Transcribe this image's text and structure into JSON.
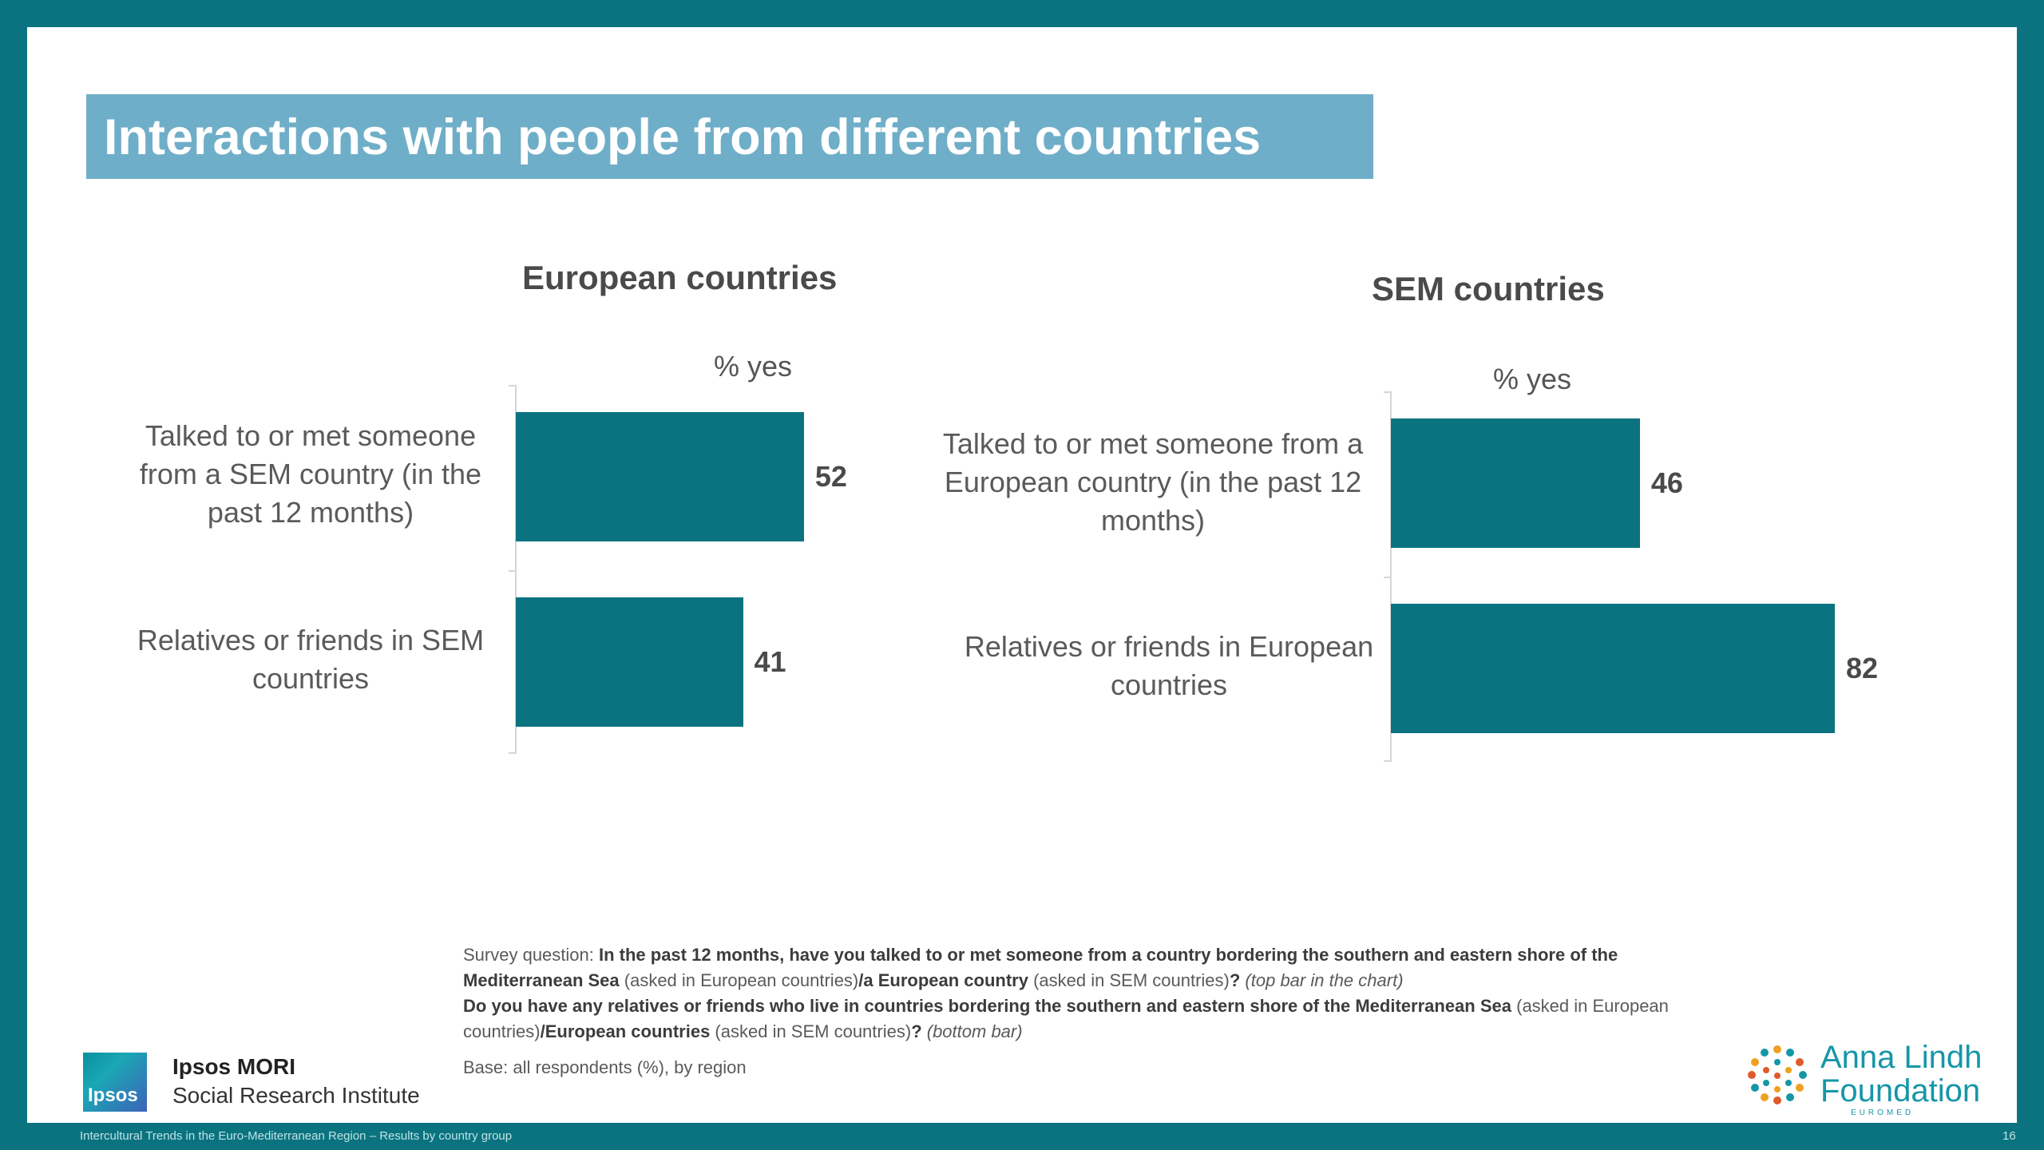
{
  "title": "Interactions with people from different countries",
  "chart_data": [
    {
      "type": "bar",
      "orientation": "horizontal",
      "title": "European countries",
      "axis_label": "% yes",
      "categories": [
        "Talked to or met someone from a SEM country (in the past 12 months)",
        "Relatives or friends in SEM countries"
      ],
      "values": [
        52,
        41
      ],
      "xlim": [
        0,
        100
      ],
      "grid": false,
      "bar_color": "#0b7380"
    },
    {
      "type": "bar",
      "orientation": "horizontal",
      "title": "SEM countries",
      "axis_label": "% yes",
      "categories": [
        "Talked to or met someone from a European country (in the past 12 months)",
        "Relatives or friends in European countries"
      ],
      "values": [
        46,
        82
      ],
      "xlim": [
        0,
        100
      ],
      "grid": false,
      "bar_color": "#0b7380"
    }
  ],
  "notes": {
    "q_prefix": "Survey question: ",
    "q1_bold": "In the past 12 months, have you talked to or met someone from a country bordering the southern and eastern shore of the Mediterranean Sea",
    "q1_a": " (asked in European countries)",
    "q1_b_bold": "/a European country",
    "q1_c": " (asked in SEM countries)",
    "q1_d_bold": "? ",
    "q1_e_italic": "(top bar in the chart)",
    "q2_bold": "Do you have any relatives or friends who live in countries bordering the southern and eastern shore of the Mediterranean Sea",
    "q2_a": " (asked in European countries)",
    "q2_b_bold": "/European countries",
    "q2_c": " (asked in SEM countries)",
    "q2_d_bold": "? ",
    "q2_e_italic": "(bottom bar)",
    "base": "Base: all respondents (%), by region"
  },
  "logos": {
    "ipsos_badge": "Ipsos",
    "ipsos_name": "Ipsos MORI",
    "ipsos_sub": "Social Research Institute",
    "alf_line1": "Anna Lindh",
    "alf_line2": "Foundation",
    "alf_line3": "EUROMED"
  },
  "footer": {
    "left": "Intercultural Trends in the Euro-Mediterranean Region – Results by country group",
    "page": "16"
  },
  "colors": {
    "brand_teal": "#0b7380",
    "title_box": "#6faec8",
    "alf_blue": "#1596a8"
  }
}
